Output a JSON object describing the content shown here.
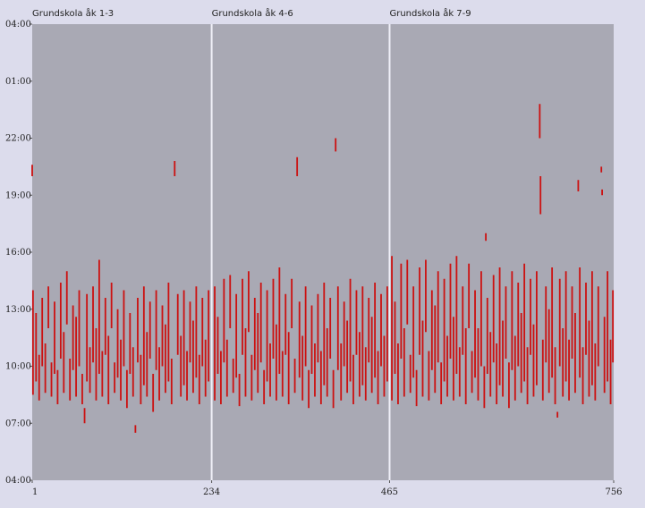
{
  "chart_data": {
    "type": "segments",
    "panels": [
      {
        "label": "Grundskola åk 1-3",
        "start": 1
      },
      {
        "label": "Grundskola åk 4-6",
        "start": 234
      },
      {
        "label": "Grundskola åk 7-9",
        "start": 465
      }
    ],
    "color": "#cc1111",
    "xlim": [
      1,
      756
    ],
    "xticks": [
      1,
      234,
      465,
      756
    ],
    "ylim": [
      4,
      28
    ],
    "yticks": [
      {
        "value": 28,
        "label": "04:00"
      },
      {
        "value": 25,
        "label": "01:00"
      },
      {
        "value": 22,
        "label": "22:00"
      },
      {
        "value": 19,
        "label": "19:00"
      },
      {
        "value": 16,
        "label": "16:00"
      },
      {
        "value": 13,
        "label": "13:00"
      },
      {
        "value": 10,
        "label": "10:00"
      },
      {
        "value": 7,
        "label": "07:00"
      },
      {
        "value": 4,
        "label": "04:00"
      }
    ],
    "segments": [
      [
        1,
        20.0,
        20.6
      ],
      [
        2,
        8.5,
        14.0
      ],
      [
        6,
        9.2,
        12.8
      ],
      [
        10,
        8.2,
        10.6
      ],
      [
        14,
        10.0,
        13.6
      ],
      [
        18,
        8.6,
        11.2
      ],
      [
        22,
        12.0,
        14.2
      ],
      [
        26,
        8.4,
        10.2
      ],
      [
        30,
        9.6,
        13.4
      ],
      [
        34,
        8.0,
        9.8
      ],
      [
        38,
        10.4,
        14.4
      ],
      [
        42,
        8.6,
        11.8
      ],
      [
        46,
        12.2,
        15.0
      ],
      [
        50,
        8.2,
        10.4
      ],
      [
        54,
        9.8,
        13.2
      ],
      [
        58,
        8.4,
        12.6
      ],
      [
        62,
        10.0,
        14.0
      ],
      [
        66,
        8.0,
        9.6
      ],
      [
        69,
        7.0,
        7.8
      ],
      [
        72,
        9.2,
        13.8
      ],
      [
        76,
        8.6,
        11.0
      ],
      [
        80,
        10.2,
        14.2
      ],
      [
        84,
        8.2,
        12.0
      ],
      [
        88,
        9.6,
        15.6
      ],
      [
        92,
        8.4,
        10.8
      ],
      [
        96,
        10.6,
        13.6
      ],
      [
        100,
        8.0,
        11.6
      ],
      [
        104,
        12.0,
        14.4
      ],
      [
        108,
        8.6,
        10.2
      ],
      [
        112,
        9.4,
        13.0
      ],
      [
        116,
        8.2,
        11.4
      ],
      [
        120,
        10.0,
        14.0
      ],
      [
        124,
        7.8,
        9.8
      ],
      [
        128,
        9.6,
        12.8
      ],
      [
        132,
        8.4,
        11.0
      ],
      [
        135,
        6.5,
        6.9
      ],
      [
        138,
        10.2,
        13.6
      ],
      [
        142,
        8.0,
        10.6
      ],
      [
        146,
        9.0,
        14.2
      ],
      [
        150,
        8.4,
        11.8
      ],
      [
        154,
        10.4,
        13.4
      ],
      [
        158,
        7.6,
        9.6
      ],
      [
        162,
        9.8,
        14.0
      ],
      [
        166,
        8.2,
        11.0
      ],
      [
        170,
        10.0,
        13.2
      ],
      [
        174,
        8.6,
        12.2
      ],
      [
        178,
        9.2,
        14.4
      ],
      [
        182,
        8.0,
        10.4
      ],
      [
        186,
        20.0,
        20.8
      ],
      [
        190,
        10.6,
        13.8
      ],
      [
        194,
        8.4,
        11.6
      ],
      [
        198,
        9.0,
        14.0
      ],
      [
        202,
        8.2,
        10.8
      ],
      [
        206,
        10.2,
        13.4
      ],
      [
        210,
        8.6,
        12.4
      ],
      [
        214,
        9.4,
        14.2
      ],
      [
        218,
        8.0,
        10.6
      ],
      [
        222,
        10.0,
        13.6
      ],
      [
        226,
        8.4,
        11.4
      ],
      [
        230,
        9.2,
        14.0
      ],
      [
        238,
        8.2,
        14.2
      ],
      [
        242,
        9.6,
        12.6
      ],
      [
        246,
        8.0,
        10.8
      ],
      [
        250,
        10.2,
        14.6
      ],
      [
        254,
        8.4,
        11.4
      ],
      [
        258,
        12.0,
        14.8
      ],
      [
        262,
        8.6,
        10.4
      ],
      [
        266,
        9.4,
        13.8
      ],
      [
        270,
        7.9,
        9.6
      ],
      [
        274,
        10.6,
        14.6
      ],
      [
        278,
        8.4,
        12.0
      ],
      [
        282,
        11.8,
        15.0
      ],
      [
        286,
        8.2,
        10.6
      ],
      [
        290,
        9.8,
        13.6
      ],
      [
        294,
        8.6,
        12.8
      ],
      [
        298,
        10.2,
        14.4
      ],
      [
        302,
        8.0,
        9.8
      ],
      [
        306,
        9.2,
        14.0
      ],
      [
        310,
        8.4,
        11.2
      ],
      [
        314,
        10.4,
        14.6
      ],
      [
        318,
        8.2,
        12.2
      ],
      [
        322,
        9.6,
        15.2
      ],
      [
        326,
        8.4,
        10.8
      ],
      [
        330,
        10.6,
        13.8
      ],
      [
        334,
        8.0,
        11.8
      ],
      [
        338,
        12.0,
        14.6
      ],
      [
        342,
        8.6,
        10.4
      ],
      [
        345,
        20.0,
        21.0
      ],
      [
        348,
        9.4,
        13.4
      ],
      [
        352,
        8.2,
        11.6
      ],
      [
        356,
        10.0,
        14.2
      ],
      [
        360,
        7.8,
        9.8
      ],
      [
        364,
        9.6,
        13.2
      ],
      [
        368,
        8.4,
        11.2
      ],
      [
        372,
        10.2,
        13.8
      ],
      [
        376,
        8.0,
        10.8
      ],
      [
        380,
        9.0,
        14.4
      ],
      [
        384,
        8.4,
        12.0
      ],
      [
        388,
        10.4,
        13.6
      ],
      [
        392,
        7.8,
        9.8
      ],
      [
        395,
        21.3,
        22.0
      ],
      [
        398,
        9.8,
        14.2
      ],
      [
        402,
        8.2,
        11.2
      ],
      [
        406,
        10.0,
        13.4
      ],
      [
        410,
        8.6,
        12.4
      ],
      [
        414,
        9.2,
        14.6
      ],
      [
        418,
        8.0,
        10.6
      ],
      [
        422,
        10.6,
        14.0
      ],
      [
        426,
        8.4,
        11.8
      ],
      [
        430,
        9.0,
        14.2
      ],
      [
        434,
        8.2,
        11.0
      ],
      [
        438,
        10.2,
        13.6
      ],
      [
        442,
        8.6,
        12.6
      ],
      [
        446,
        9.4,
        14.4
      ],
      [
        450,
        8.0,
        10.8
      ],
      [
        454,
        10.0,
        13.8
      ],
      [
        458,
        8.4,
        11.6
      ],
      [
        462,
        9.2,
        14.2
      ],
      [
        468,
        8.2,
        15.8
      ],
      [
        472,
        9.6,
        13.4
      ],
      [
        476,
        8.0,
        11.2
      ],
      [
        480,
        10.4,
        15.4
      ],
      [
        484,
        8.4,
        12.0
      ],
      [
        488,
        12.2,
        15.6
      ],
      [
        492,
        8.6,
        10.6
      ],
      [
        496,
        9.4,
        14.2
      ],
      [
        500,
        7.9,
        9.8
      ],
      [
        504,
        10.6,
        15.2
      ],
      [
        508,
        8.4,
        12.4
      ],
      [
        512,
        11.8,
        15.6
      ],
      [
        516,
        8.2,
        10.8
      ],
      [
        520,
        9.8,
        14.0
      ],
      [
        524,
        8.6,
        13.2
      ],
      [
        528,
        10.2,
        15.0
      ],
      [
        532,
        8.0,
        10.2
      ],
      [
        536,
        9.2,
        14.6
      ],
      [
        540,
        8.4,
        11.6
      ],
      [
        544,
        10.4,
        15.4
      ],
      [
        548,
        8.2,
        12.6
      ],
      [
        552,
        9.6,
        15.8
      ],
      [
        556,
        8.4,
        11.0
      ],
      [
        560,
        10.6,
        14.2
      ],
      [
        564,
        8.0,
        12.0
      ],
      [
        568,
        12.0,
        15.4
      ],
      [
        572,
        8.6,
        10.8
      ],
      [
        576,
        9.4,
        14.0
      ],
      [
        580,
        8.2,
        12.0
      ],
      [
        584,
        10.0,
        15.0
      ],
      [
        588,
        7.8,
        10.0
      ],
      [
        590,
        16.6,
        17.0
      ],
      [
        592,
        9.6,
        13.6
      ],
      [
        596,
        8.4,
        11.8
      ],
      [
        600,
        10.2,
        14.8
      ],
      [
        604,
        8.0,
        11.2
      ],
      [
        608,
        9.0,
        15.2
      ],
      [
        612,
        8.4,
        12.4
      ],
      [
        616,
        10.4,
        14.2
      ],
      [
        620,
        7.8,
        10.2
      ],
      [
        624,
        9.8,
        15.0
      ],
      [
        628,
        8.2,
        11.6
      ],
      [
        632,
        10.0,
        14.4
      ],
      [
        636,
        8.6,
        12.8
      ],
      [
        640,
        9.2,
        15.4
      ],
      [
        644,
        8.0,
        11.0
      ],
      [
        648,
        10.6,
        14.6
      ],
      [
        652,
        8.4,
        12.2
      ],
      [
        656,
        9.0,
        15.0
      ],
      [
        660,
        22.0,
        23.8
      ],
      [
        661,
        18.0,
        20.0
      ],
      [
        664,
        8.2,
        11.4
      ],
      [
        668,
        10.2,
        14.2
      ],
      [
        672,
        8.6,
        13.0
      ],
      [
        676,
        9.4,
        15.2
      ],
      [
        680,
        8.0,
        11.0
      ],
      [
        683,
        7.3,
        7.6
      ],
      [
        686,
        10.0,
        14.6
      ],
      [
        690,
        8.4,
        12.0
      ],
      [
        694,
        9.2,
        15.0
      ],
      [
        698,
        8.2,
        11.4
      ],
      [
        702,
        10.4,
        14.2
      ],
      [
        706,
        8.6,
        12.8
      ],
      [
        710,
        19.2,
        19.8
      ],
      [
        712,
        9.4,
        15.2
      ],
      [
        716,
        8.0,
        11.0
      ],
      [
        720,
        10.6,
        14.4
      ],
      [
        724,
        8.4,
        12.4
      ],
      [
        728,
        9.0,
        15.0
      ],
      [
        732,
        8.2,
        11.2
      ],
      [
        736,
        10.0,
        14.2
      ],
      [
        740,
        20.2,
        20.5
      ],
      [
        741,
        19.0,
        19.3
      ],
      [
        744,
        8.6,
        12.6
      ],
      [
        748,
        9.2,
        15.0
      ],
      [
        752,
        8.0,
        11.4
      ],
      [
        755,
        10.2,
        14.0
      ]
    ]
  }
}
